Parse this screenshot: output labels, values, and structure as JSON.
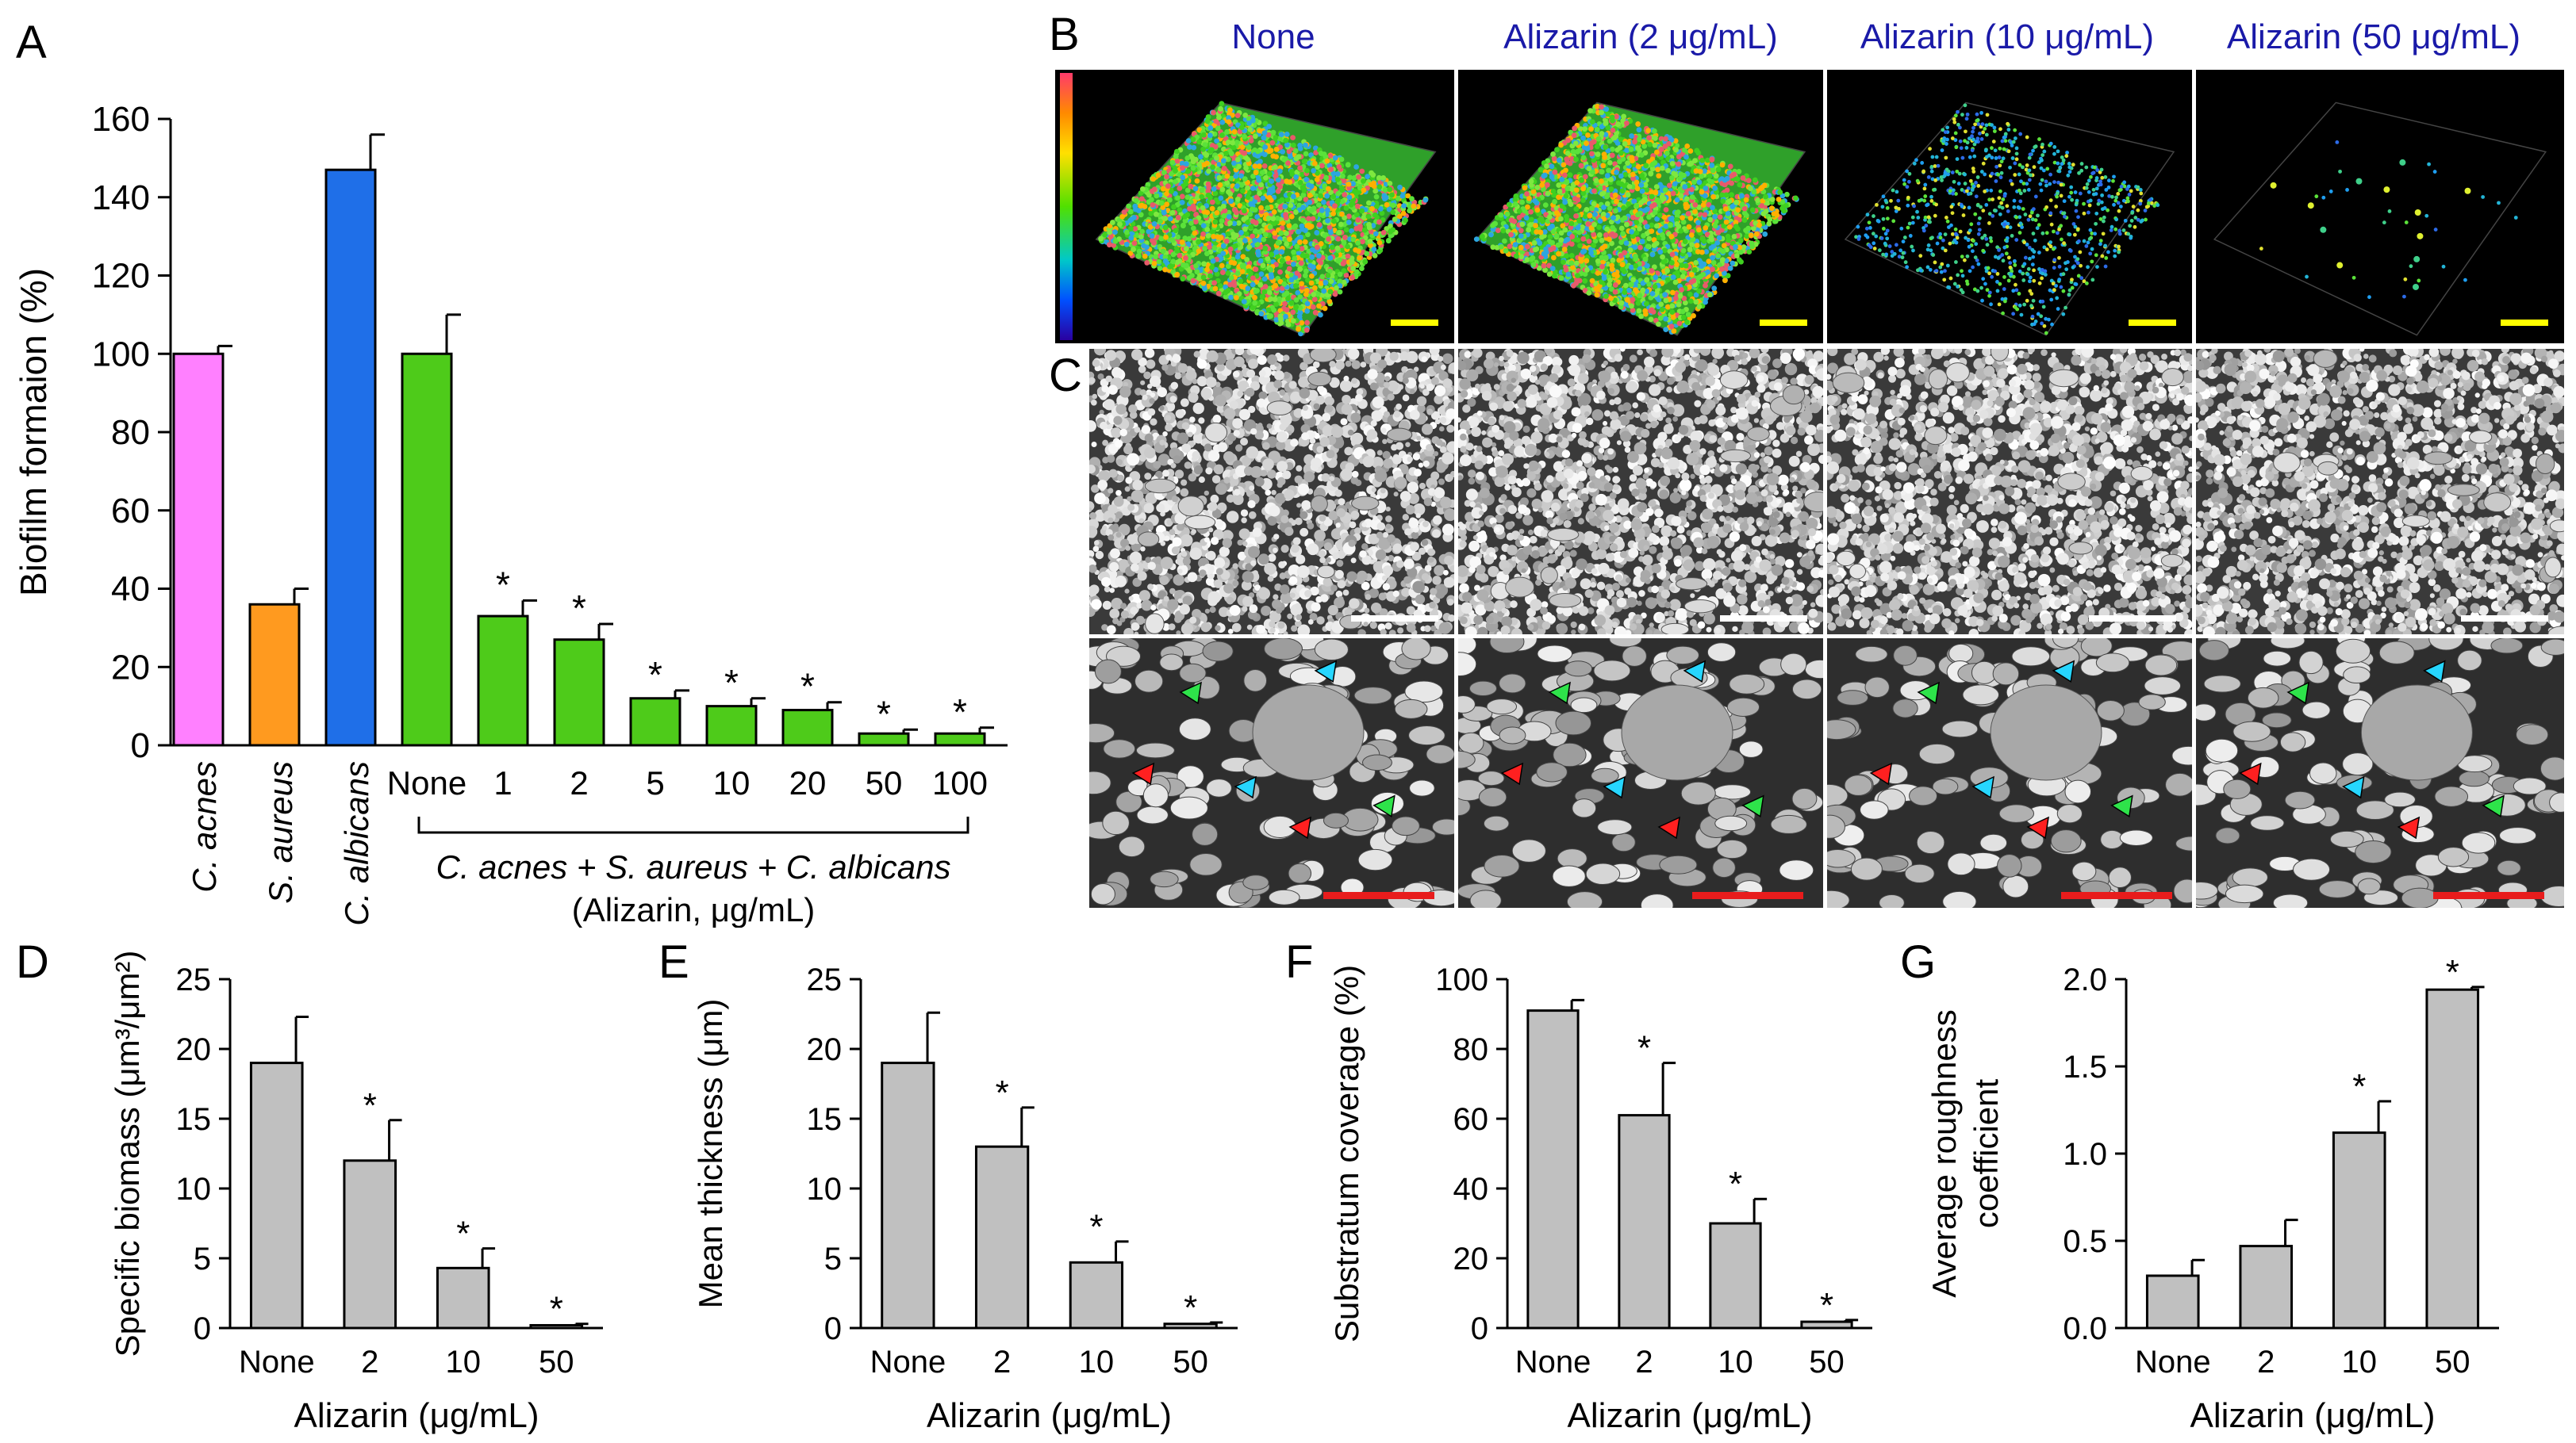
{
  "panels": {
    "A": {
      "label": "A",
      "ylabel": "Biofilm formaion (%)",
      "ylim": [
        0,
        160
      ],
      "yticks": [
        0,
        20,
        40,
        60,
        80,
        100,
        120,
        140,
        160
      ],
      "bars": [
        {
          "label": "C. acnes",
          "italic": true,
          "value": 100,
          "err": 2,
          "color": "#ff80ff",
          "star": false
        },
        {
          "label": "S. aureus",
          "italic": true,
          "value": 36,
          "err": 4,
          "color": "#ff9a1f",
          "star": false
        },
        {
          "label": "C. albicans",
          "italic": true,
          "value": 147,
          "err": 9,
          "color": "#1f6fe8",
          "star": false
        },
        {
          "label": "None",
          "italic": false,
          "value": 100,
          "err": 10,
          "color": "#4ecb1a",
          "star": false
        },
        {
          "label": "1",
          "italic": false,
          "value": 33,
          "err": 4,
          "color": "#4ecb1a",
          "star": true
        },
        {
          "label": "2",
          "italic": false,
          "value": 27,
          "err": 4,
          "color": "#4ecb1a",
          "star": true
        },
        {
          "label": "5",
          "italic": false,
          "value": 12,
          "err": 2,
          "color": "#4ecb1a",
          "star": true
        },
        {
          "label": "10",
          "italic": false,
          "value": 10,
          "err": 2,
          "color": "#4ecb1a",
          "star": true
        },
        {
          "label": "20",
          "italic": false,
          "value": 9,
          "err": 2,
          "color": "#4ecb1a",
          "star": true
        },
        {
          "label": "50",
          "italic": false,
          "value": 3,
          "err": 1,
          "color": "#4ecb1a",
          "star": true
        },
        {
          "label": "100",
          "italic": false,
          "value": 3,
          "err": 1.5,
          "color": "#4ecb1a",
          "star": true
        }
      ],
      "group_label": "C. acnes + S. aureus + C. albicans",
      "group_sub": "(Alizarin, μg/mL)"
    },
    "B": {
      "label": "B",
      "columns": [
        "None",
        "Alizarin (2 μg/mL)",
        "Alizarin (10 μg/mL)",
        "Alizarin (50 μg/mL)"
      ]
    },
    "C": {
      "label": "C"
    },
    "D": {
      "label": "D",
      "ylabel": "Specific biomass (μm³/μm²)",
      "xlabel": "Alizarin (μg/mL)",
      "ylim": [
        0,
        25
      ],
      "yticks": [
        0,
        5,
        10,
        15,
        20,
        25
      ],
      "bars": [
        {
          "label": "None",
          "value": 19,
          "err": 3.3,
          "star": false
        },
        {
          "label": "2",
          "value": 12,
          "err": 2.9,
          "star": true
        },
        {
          "label": "10",
          "value": 4.3,
          "err": 1.4,
          "star": true
        },
        {
          "label": "50",
          "value": 0.2,
          "err": 0.1,
          "star": true
        }
      ]
    },
    "E": {
      "label": "E",
      "ylabel": "Mean thickness (μm)",
      "xlabel": "Alizarin (μg/mL)",
      "ylim": [
        0,
        25
      ],
      "yticks": [
        0,
        5,
        10,
        15,
        20,
        25
      ],
      "bars": [
        {
          "label": "None",
          "value": 19,
          "err": 3.6,
          "star": false
        },
        {
          "label": "2",
          "value": 13,
          "err": 2.8,
          "star": true
        },
        {
          "label": "10",
          "value": 4.7,
          "err": 1.5,
          "star": true
        },
        {
          "label": "50",
          "value": 0.3,
          "err": 0.1,
          "star": true
        }
      ]
    },
    "F": {
      "label": "F",
      "ylabel": "Substratum coverage (%)",
      "xlabel": "Alizarin (μg/mL)",
      "ylim": [
        0,
        100
      ],
      "yticks": [
        0,
        20,
        40,
        60,
        80,
        100
      ],
      "bars": [
        {
          "label": "None",
          "value": 91,
          "err": 3,
          "star": false
        },
        {
          "label": "2",
          "value": 61,
          "err": 15,
          "star": true
        },
        {
          "label": "10",
          "value": 30,
          "err": 7,
          "star": true
        },
        {
          "label": "50",
          "value": 1.8,
          "err": 0.5,
          "star": true
        }
      ]
    },
    "G": {
      "label": "G",
      "ylabel": "Average roughness coefficient",
      "ylabel_lines": [
        "Average roughness",
        "coefficient"
      ],
      "xlabel": "Alizarin (μg/mL)",
      "ylim": [
        0,
        2.0
      ],
      "yticks": [
        0.0,
        0.5,
        1.0,
        1.5,
        2.0
      ],
      "bars": [
        {
          "label": "None",
          "value": 0.3,
          "err": 0.09,
          "star": false
        },
        {
          "label": "2",
          "value": 0.47,
          "err": 0.15,
          "star": false
        },
        {
          "label": "10",
          "value": 1.12,
          "err": 0.18,
          "star": true
        },
        {
          "label": "50",
          "value": 1.94,
          "err": 0.015,
          "star": true
        }
      ]
    }
  },
  "colors": {
    "gray_bar": "#c0c0c0",
    "title_blue": "#1a1aa8",
    "scale_yellow": "#ffff00",
    "scale_white": "#ffffff",
    "scale_red": "#e81c1c",
    "arrow_cyan": "#26d6ff",
    "arrow_red": "#ff2020",
    "arrow_green": "#2ee34a"
  },
  "chart_data": [
    {
      "type": "bar",
      "title": "",
      "ylabel": "Biofilm formaion (%)",
      "ylim": [
        0,
        160
      ],
      "categories": [
        "C. acnes",
        "S. aureus",
        "C. albicans",
        "None",
        "1",
        "2",
        "5",
        "10",
        "20",
        "50",
        "100"
      ],
      "values": [
        100,
        36,
        147,
        100,
        33,
        27,
        12,
        10,
        9,
        3,
        3
      ]
    },
    {
      "type": "bar",
      "ylabel": "Specific biomass (μm³/μm²)",
      "xlabel": "Alizarin (μg/mL)",
      "categories": [
        "None",
        "2",
        "10",
        "50"
      ],
      "values": [
        19,
        12,
        4.3,
        0.2
      ],
      "ylim": [
        0,
        25
      ]
    },
    {
      "type": "bar",
      "ylabel": "Mean thickness (μm)",
      "xlabel": "Alizarin (μg/mL)",
      "categories": [
        "None",
        "2",
        "10",
        "50"
      ],
      "values": [
        19,
        13,
        4.7,
        0.3
      ],
      "ylim": [
        0,
        25
      ]
    },
    {
      "type": "bar",
      "ylabel": "Substratum coverage (%)",
      "xlabel": "Alizarin (μg/mL)",
      "categories": [
        "None",
        "2",
        "10",
        "50"
      ],
      "values": [
        91,
        61,
        30,
        1.8
      ],
      "ylim": [
        0,
        100
      ]
    },
    {
      "type": "bar",
      "ylabel": "Average roughness coefficient",
      "xlabel": "Alizarin (μg/mL)",
      "categories": [
        "None",
        "2",
        "10",
        "50"
      ],
      "values": [
        0.3,
        0.47,
        1.12,
        1.94
      ],
      "ylim": [
        0,
        2.0
      ]
    }
  ]
}
